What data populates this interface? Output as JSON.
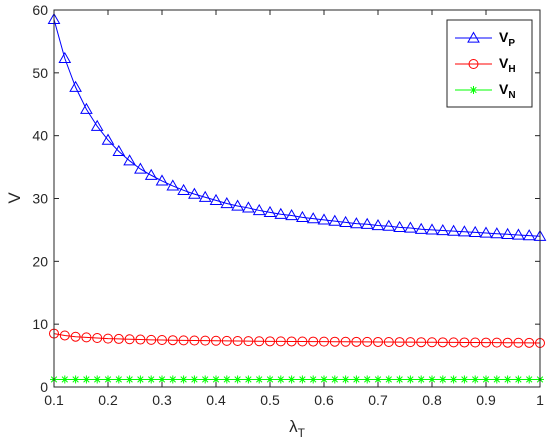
{
  "chart_data": {
    "type": "line",
    "xlabel": {
      "base": "λ",
      "sub": "T"
    },
    "ylabel": "V",
    "xlim": [
      0.1,
      1
    ],
    "ylim": [
      0,
      60
    ],
    "xticks": [
      0.1,
      0.2,
      0.3,
      0.4,
      0.5,
      0.6,
      0.7,
      0.8,
      0.9,
      1
    ],
    "xtick_labels": [
      "0.1",
      "0.2",
      "0.3",
      "0.4",
      "0.5",
      "0.6",
      "0.7",
      "0.8",
      "0.9",
      "1"
    ],
    "yticks": [
      0,
      10,
      20,
      30,
      40,
      50,
      60
    ],
    "ytick_labels": [
      "0",
      "10",
      "20",
      "30",
      "40",
      "50",
      "60"
    ],
    "grid": false,
    "legend_position": "top-right",
    "x": [
      0.1,
      0.12,
      0.14,
      0.16,
      0.18,
      0.2,
      0.22,
      0.24,
      0.26,
      0.28,
      0.3,
      0.32,
      0.34,
      0.36,
      0.38,
      0.4,
      0.42,
      0.44,
      0.46,
      0.48,
      0.5,
      0.52,
      0.54,
      0.56,
      0.58,
      0.6,
      0.62,
      0.64,
      0.66,
      0.68,
      0.7,
      0.72,
      0.74,
      0.76,
      0.78,
      0.8,
      0.82,
      0.84,
      0.86,
      0.88,
      0.9,
      0.92,
      0.94,
      0.96,
      0.98,
      1.0
    ],
    "series": [
      {
        "name": {
          "base": "V",
          "sub": "P"
        },
        "color": "#0000ff",
        "marker": "triangle",
        "values": [
          58.5,
          52.3,
          47.7,
          44.2,
          41.5,
          39.3,
          37.5,
          36.0,
          34.7,
          33.7,
          32.8,
          32.0,
          31.3,
          30.7,
          30.2,
          29.7,
          29.2,
          28.8,
          28.5,
          28.1,
          27.8,
          27.5,
          27.3,
          27.0,
          26.8,
          26.6,
          26.4,
          26.2,
          26.0,
          25.9,
          25.7,
          25.6,
          25.4,
          25.3,
          25.1,
          25.0,
          24.9,
          24.8,
          24.7,
          24.6,
          24.5,
          24.4,
          24.3,
          24.2,
          24.1,
          24.0
        ]
      },
      {
        "name": {
          "base": "V",
          "sub": "H"
        },
        "color": "#ff0000",
        "marker": "circle",
        "values": [
          8.5,
          8.2,
          8.0,
          7.9,
          7.8,
          7.7,
          7.65,
          7.6,
          7.55,
          7.5,
          7.48,
          7.45,
          7.42,
          7.4,
          7.38,
          7.36,
          7.34,
          7.32,
          7.3,
          7.28,
          7.27,
          7.26,
          7.25,
          7.24,
          7.23,
          7.22,
          7.21,
          7.2,
          7.19,
          7.18,
          7.17,
          7.16,
          7.15,
          7.14,
          7.13,
          7.12,
          7.11,
          7.1,
          7.09,
          7.08,
          7.07,
          7.06,
          7.05,
          7.04,
          7.03,
          7.0
        ]
      },
      {
        "name": {
          "base": "V",
          "sub": "N"
        },
        "color": "#00ff00",
        "marker": "asterisk",
        "values": [
          1.2,
          1.2,
          1.2,
          1.2,
          1.2,
          1.2,
          1.2,
          1.2,
          1.2,
          1.2,
          1.2,
          1.2,
          1.2,
          1.2,
          1.2,
          1.2,
          1.2,
          1.2,
          1.2,
          1.2,
          1.2,
          1.2,
          1.2,
          1.2,
          1.2,
          1.2,
          1.2,
          1.2,
          1.2,
          1.2,
          1.2,
          1.2,
          1.2,
          1.2,
          1.2,
          1.2,
          1.2,
          1.2,
          1.2,
          1.2,
          1.2,
          1.2,
          1.2,
          1.2,
          1.2,
          1.2
        ]
      }
    ]
  }
}
